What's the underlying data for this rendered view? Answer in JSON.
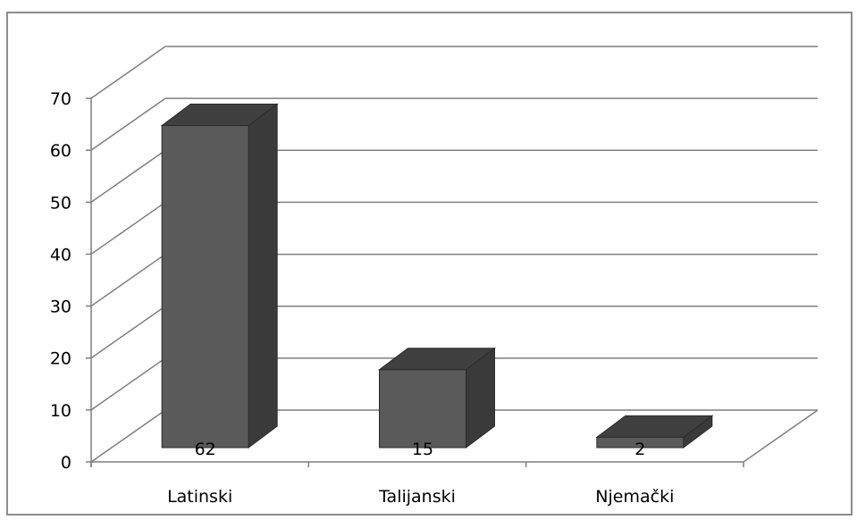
{
  "chart_data": {
    "type": "bar",
    "style": "3d-column",
    "categories": [
      "Latinski",
      "Talijanski",
      "Njemački"
    ],
    "values": [
      62,
      15,
      2
    ],
    "data_labels": [
      "62",
      "15",
      "2"
    ],
    "title": "",
    "xlabel": "",
    "ylabel": "",
    "ylim": [
      0,
      70
    ],
    "y_ticks": [
      "0",
      "10",
      "20",
      "30",
      "40",
      "50",
      "60",
      "70"
    ],
    "grid": true,
    "legend": "none",
    "colors": {
      "bar_front": "#5a5a5a",
      "bar_top": "#404040",
      "bar_side": "#3a3a3a",
      "grid": "#7f7f7f"
    }
  }
}
